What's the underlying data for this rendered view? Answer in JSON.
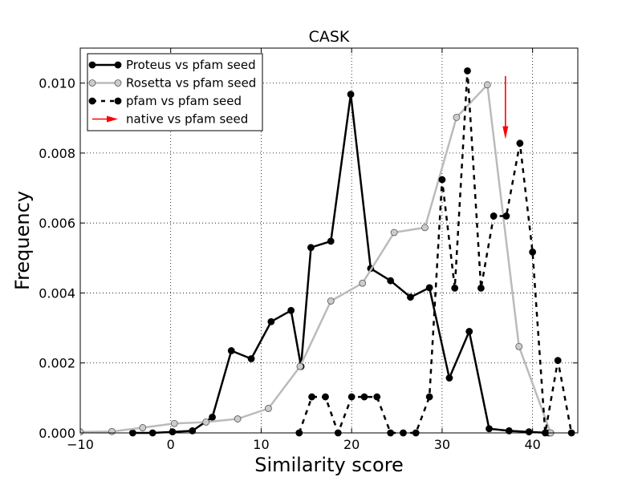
{
  "chart_data": {
    "type": "line",
    "title": "CASK",
    "xlabel": "Similarity score",
    "ylabel": "Frequency",
    "xlim": [
      -10,
      45
    ],
    "ylim": [
      0,
      0.011
    ],
    "xticks": [
      -10,
      0,
      10,
      20,
      30,
      40
    ],
    "xtick_labels": [
      "−10",
      "0",
      "10",
      "20",
      "30",
      "40"
    ],
    "yticks": [
      0.0,
      0.002,
      0.004,
      0.006,
      0.008,
      0.01
    ],
    "ytick_labels": [
      "0.000",
      "0.002",
      "0.004",
      "0.006",
      "0.008",
      "0.010"
    ],
    "grid": true,
    "legend_position": "top-left",
    "colors": {
      "proteus": "#000000",
      "rosetta": "#bbbbbb",
      "rosetta_marker": "#cccccc",
      "pfam": "#000000",
      "native": "#ff0000"
    },
    "series": [
      {
        "name": "Proteus vs pfam seed",
        "style": "solid",
        "points": [
          [
            -4.2,
            0.0
          ],
          [
            -2.0,
            0.0
          ],
          [
            0.2,
            3e-05
          ],
          [
            2.4,
            6e-05
          ],
          [
            4.6,
            0.00045
          ],
          [
            6.7,
            0.00235
          ],
          [
            8.9,
            0.00212
          ],
          [
            11.1,
            0.00318
          ],
          [
            13.3,
            0.0035
          ],
          [
            14.4,
            0.0019
          ],
          [
            15.5,
            0.0053
          ],
          [
            17.7,
            0.00548
          ],
          [
            19.9,
            0.00968
          ],
          [
            22.1,
            0.0047
          ],
          [
            24.3,
            0.00435
          ],
          [
            26.5,
            0.00388
          ],
          [
            28.6,
            0.00415
          ],
          [
            30.8,
            0.00157
          ],
          [
            33.0,
            0.0029
          ],
          [
            35.2,
            0.00012
          ],
          [
            37.4,
            6e-05
          ],
          [
            39.6,
            3e-05
          ],
          [
            41.8,
            0.0
          ]
        ]
      },
      {
        "name": "Rosetta vs pfam seed",
        "style": "solid-gray",
        "points": [
          [
            -10.0,
            3e-05
          ],
          [
            -6.5,
            4e-05
          ],
          [
            -3.1,
            0.00015
          ],
          [
            0.4,
            0.00027
          ],
          [
            3.9,
            0.00031
          ],
          [
            7.4,
            0.0004
          ],
          [
            10.8,
            0.0007
          ],
          [
            14.3,
            0.0019
          ],
          [
            17.7,
            0.00377
          ],
          [
            21.2,
            0.00428
          ],
          [
            24.7,
            0.00573
          ],
          [
            28.1,
            0.00587
          ],
          [
            31.6,
            0.00902
          ],
          [
            35.0,
            0.00995
          ],
          [
            38.5,
            0.00247
          ],
          [
            42.0,
            0.0
          ]
        ]
      },
      {
        "name": "pfam vs pfam seed",
        "style": "dashed",
        "points": [
          [
            14.2,
            0.0
          ],
          [
            15.6,
            0.00103
          ],
          [
            17.1,
            0.00103
          ],
          [
            18.5,
            0.0
          ],
          [
            20.0,
            0.00103
          ],
          [
            21.4,
            0.00103
          ],
          [
            22.8,
            0.00103
          ],
          [
            24.3,
            0.0
          ],
          [
            25.7,
            0.0
          ],
          [
            27.1,
            0.0
          ],
          [
            28.6,
            0.00103
          ],
          [
            30.0,
            0.00724
          ],
          [
            31.4,
            0.00414
          ],
          [
            32.8,
            0.01035
          ],
          [
            34.3,
            0.00414
          ],
          [
            35.7,
            0.0062
          ],
          [
            37.1,
            0.0062
          ],
          [
            38.6,
            0.00828
          ],
          [
            40.0,
            0.00517
          ],
          [
            41.4,
            0.0
          ],
          [
            42.8,
            0.00207
          ],
          [
            44.3,
            0.0
          ]
        ]
      }
    ],
    "native": {
      "name": "native vs pfam seed",
      "x": 37.0,
      "y_top": 0.0102,
      "y_tip": 0.0084
    }
  }
}
